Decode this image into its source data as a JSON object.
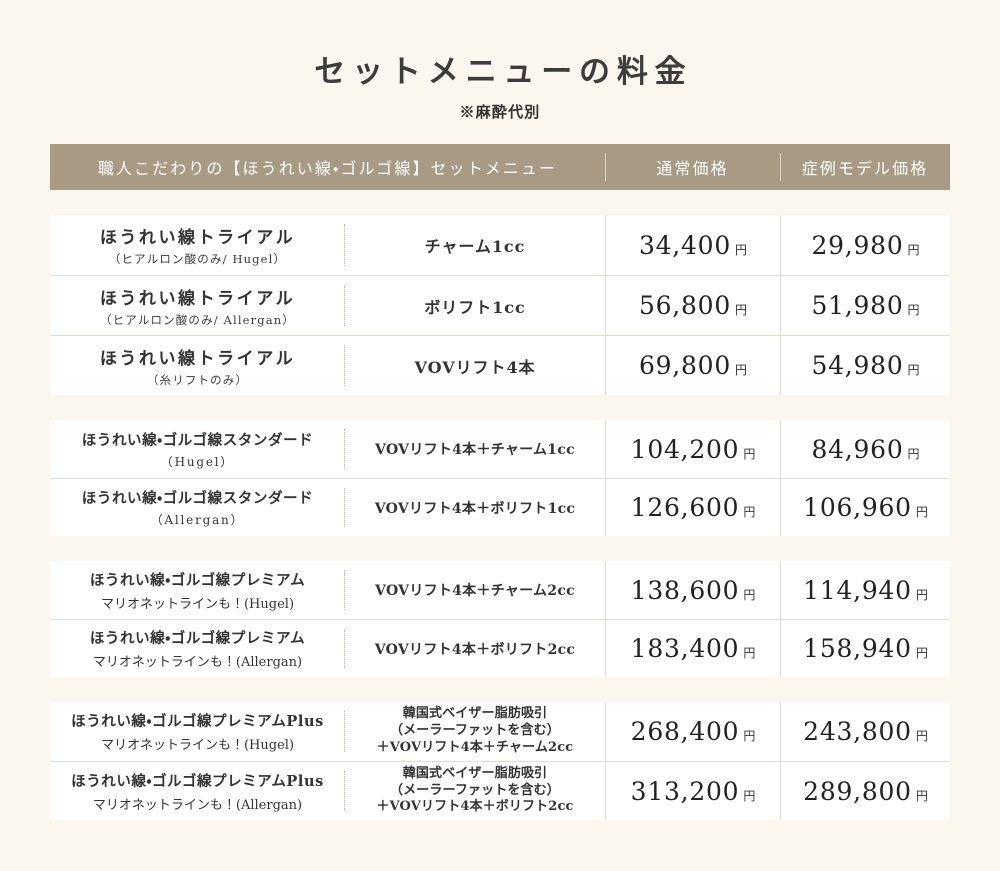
{
  "page": {
    "title": "セットメニューの料金",
    "subtitle": "※麻酔代別"
  },
  "table": {
    "header": {
      "menu": "職人こだわりの【ほうれい線・ゴルゴ線】セットメニュー",
      "normal_price": "通常価格",
      "model_price": "症例モデル価格"
    },
    "currency": "円",
    "groups": [
      {
        "rows": [
          {
            "name": "ほうれい線トライアル",
            "sub": "（ヒアルロン酸のみ/ Hugel）",
            "treatment": "チャーム1cc",
            "normal": "34,400",
            "model": "29,980"
          },
          {
            "name": "ほうれい線トライアル",
            "sub": "（ヒアルロン酸のみ/ Allergan）",
            "treatment": "ボリフト1cc",
            "normal": "56,800",
            "model": "51,980"
          },
          {
            "name": "ほうれい線トライアル",
            "sub": "（糸リフトのみ）",
            "treatment": "VOVリフト4本",
            "normal": "69,800",
            "model": "54,980"
          }
        ]
      },
      {
        "rows": [
          {
            "name": "ほうれい線・ゴルゴ線スタンダード",
            "sub": "（Hugel）",
            "treatment": "VOVリフト4本＋チャーム1cc",
            "normal": "104,200",
            "model": "84,960"
          },
          {
            "name": "ほうれい線・ゴルゴ線スタンダード",
            "sub": "（Allergan）",
            "treatment": "VOVリフト4本＋ボリフト1cc",
            "normal": "126,600",
            "model": "106,960"
          }
        ]
      },
      {
        "rows": [
          {
            "name": "ほうれい線・ゴルゴ線プレミアム",
            "sub": "マリオネットラインも！(Hugel)",
            "treatment": "VOVリフト4本＋チャーム2cc",
            "normal": "138,600",
            "model": "114,940"
          },
          {
            "name": "ほうれい線・ゴルゴ線プレミアム",
            "sub": "マリオネットラインも！(Allergan)",
            "treatment": "VOVリフト4本＋ボリフト2cc",
            "normal": "183,400",
            "model": "158,940"
          }
        ]
      },
      {
        "rows": [
          {
            "name": "ほうれい線・ゴルゴ線プレミアムPlus",
            "sub": "マリオネットラインも！(Hugel)",
            "treatment": [
              "韓国式ベイザー脂肪吸引",
              "（メーラーファットを含む）",
              "＋VOVリフト4本＋チャーム2cc"
            ],
            "normal": "268,400",
            "model": "243,800"
          },
          {
            "name": "ほうれい線・ゴルゴ線プレミアムPlus",
            "sub": "マリオネットラインも！(Allergan)",
            "treatment": [
              "韓国式ベイザー脂肪吸引",
              "（メーラーファットを含む）",
              "＋VOVリフト4本＋ボリフト2cc"
            ],
            "normal": "313,200",
            "model": "289,800"
          }
        ]
      }
    ]
  },
  "colors": {
    "background": "#fbf7ee",
    "header_bg": "#a89a84",
    "header_text": "#ffffff",
    "row_bg": "#ffffff",
    "text": "#333333"
  }
}
